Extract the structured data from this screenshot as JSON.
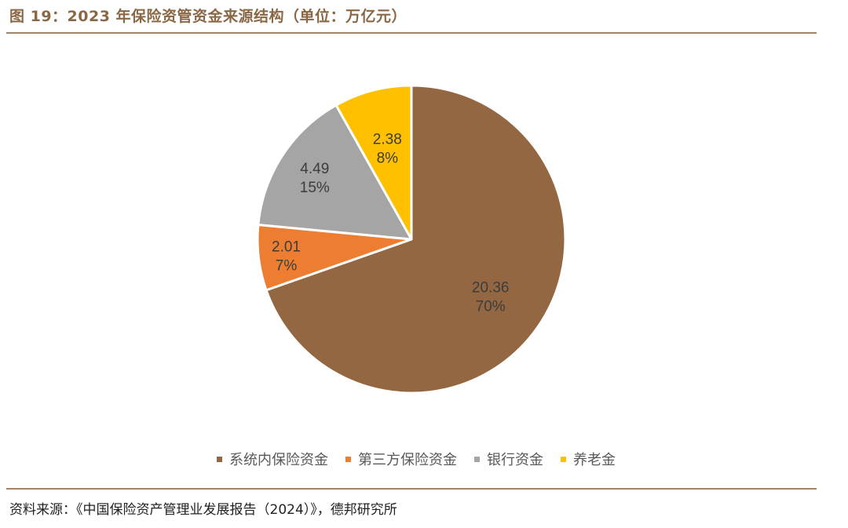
{
  "title": "图 19：2023 年保险资管资金来源结构（单位：万亿元）",
  "source": "资料来源：《中国保险资产管理业发展报告（2024）》，德邦研究所",
  "chart_data": {
    "type": "pie",
    "categories": [
      "系统内保险资金",
      "第三方保险资金",
      "银行资金",
      "养老金"
    ],
    "values": [
      20.36,
      2.01,
      4.49,
      2.38
    ],
    "percent_labels": [
      "70%",
      "7%",
      "15%",
      "8%"
    ],
    "value_labels": [
      "20.36",
      "2.01",
      "4.49",
      "2.38"
    ],
    "colors": [
      "#936741",
      "#ed7d31",
      "#a5a5a5",
      "#ffc000"
    ],
    "start_angle_deg": 0,
    "direction": "clockwise",
    "legend_position": "bottom"
  }
}
